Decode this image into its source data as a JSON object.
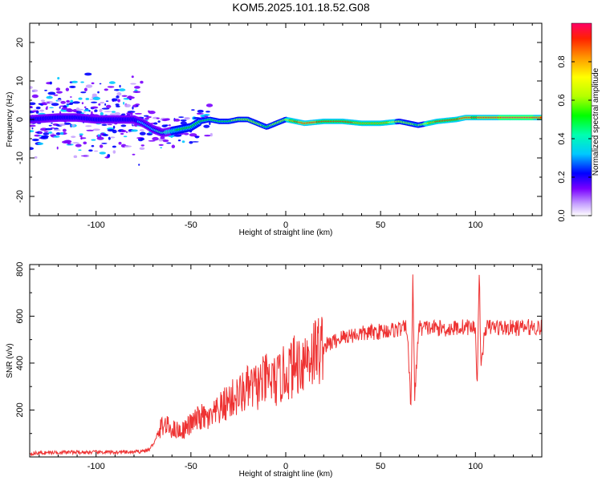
{
  "title": "KOM5.2025.101.18.52.G08",
  "chart_data": [
    {
      "type": "heatmap",
      "xlabel": "Height of straight line (km)",
      "ylabel": "Frequency (Hz)",
      "xlim": [
        -135,
        135
      ],
      "ylim": [
        -25,
        25
      ],
      "xticks": [
        -100,
        -50,
        0,
        50,
        100
      ],
      "yticks": [
        -20,
        -10,
        0,
        10,
        20
      ],
      "colorbar": {
        "label": "Normalized spectral amplitude",
        "range": [
          0,
          1
        ],
        "ticks": [
          0.0,
          0.2,
          0.4,
          0.6,
          0.8
        ]
      },
      "ridge": {
        "x": [
          -135,
          -120,
          -110,
          -100,
          -90,
          -80,
          -75,
          -70,
          -65,
          -60,
          -55,
          -50,
          -45,
          -40,
          -35,
          -30,
          -25,
          -20,
          -15,
          -10,
          -5,
          0,
          5,
          10,
          20,
          30,
          40,
          50,
          60,
          65,
          70,
          75,
          80,
          90,
          95,
          100,
          105,
          110,
          120,
          135
        ],
        "freq": [
          0,
          0.5,
          0.5,
          0,
          0,
          0,
          -1,
          -2.5,
          -3.5,
          -3,
          -2.5,
          -2,
          -0.5,
          0,
          -0.5,
          -0.5,
          0,
          0,
          -1,
          -2,
          -1,
          0,
          -0.5,
          -1,
          -0.5,
          -0.5,
          -1,
          -1,
          -0.5,
          -1,
          -1.5,
          -1,
          -0.5,
          0,
          0.5,
          0.5,
          0.5,
          0.5,
          0.5,
          0.5
        ],
        "amplitude": [
          0.2,
          0.2,
          0.2,
          0.2,
          0.2,
          0.2,
          0.25,
          0.3,
          0.35,
          0.4,
          0.45,
          0.5,
          0.5,
          0.5,
          0.45,
          0.5,
          0.55,
          0.6,
          0.55,
          0.5,
          0.55,
          0.6,
          0.85,
          0.9,
          0.85,
          0.85,
          0.8,
          0.8,
          0.6,
          0.55,
          0.5,
          0.7,
          0.85,
          0.85,
          0.9,
          0.85,
          0.9,
          0.9,
          0.95,
          0.9
        ]
      }
    },
    {
      "type": "line",
      "xlabel": "Height of straight line (km)",
      "ylabel": "SNR (v/v)",
      "xlim": [
        -135,
        135
      ],
      "ylim": [
        0,
        820
      ],
      "xticks": [
        -100,
        -50,
        0,
        50,
        100
      ],
      "yticks": [
        200,
        400,
        600,
        800
      ],
      "color": "#ee3333",
      "series": [
        {
          "x": [
            -135,
            -120,
            -100,
            -80,
            -72,
            -68,
            -65,
            -60,
            -55,
            -50,
            -45,
            -40,
            -35,
            -30,
            -25,
            -20,
            -15,
            -10,
            -5,
            0,
            5,
            10,
            15,
            20,
            25,
            30,
            35,
            40,
            45,
            50,
            55,
            60,
            64,
            66,
            67,
            68,
            70,
            75,
            80,
            85,
            90,
            95,
            100,
            101,
            102,
            103,
            105,
            110,
            115,
            120,
            125,
            130,
            135
          ],
          "y": [
            15,
            20,
            20,
            20,
            30,
            80,
            140,
            120,
            110,
            140,
            170,
            160,
            200,
            240,
            260,
            290,
            300,
            330,
            320,
            360,
            390,
            420,
            450,
            470,
            490,
            510,
            520,
            525,
            530,
            535,
            540,
            545,
            550,
            200,
            780,
            250,
            550,
            550,
            550,
            545,
            550,
            555,
            550,
            300,
            810,
            360,
            550,
            555,
            550,
            550,
            550,
            555,
            550
          ]
        }
      ]
    }
  ]
}
